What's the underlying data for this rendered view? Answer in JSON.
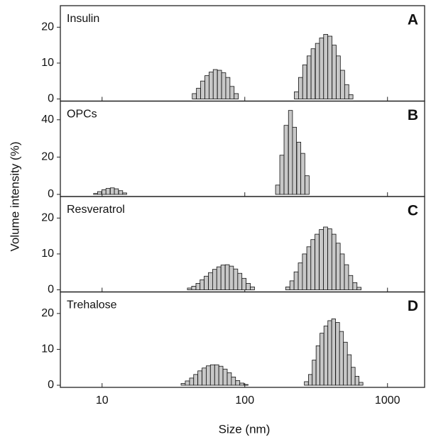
{
  "y_label": "Volume intensity (%)",
  "x_label": "Size (nm)",
  "chart_data": [
    {
      "type": "bar",
      "title": "Insulin",
      "panel_label": "A",
      "log_x": true,
      "color": "#c8c8c8",
      "x": [
        44.3,
        47.4,
        50.7,
        54.3,
        58.1,
        62.1,
        66.5,
        71.1,
        76.1,
        81.4,
        87.1,
        230,
        246,
        263,
        282,
        301,
        323,
        345,
        369,
        395,
        423,
        452,
        484,
        518,
        554
      ],
      "values": [
        1.5,
        3,
        5,
        6.5,
        7.5,
        8.2,
        8,
        7.3,
        6,
        3.5,
        1.5,
        2,
        6,
        9.5,
        12,
        14,
        15.5,
        17,
        18,
        17.5,
        15,
        12,
        8,
        4,
        1.2
      ],
      "xlim": [
        5.1,
        1820
      ],
      "xticks": [
        10,
        100,
        1000
      ],
      "ylim": [
        0,
        26
      ],
      "yticks": [
        0,
        10,
        20
      ]
    },
    {
      "type": "bar",
      "title": "OPCs",
      "panel_label": "B",
      "log_x": true,
      "color": "#c8c8c8",
      "x": [
        9.0,
        9.6,
        10.3,
        11.0,
        11.8,
        12.6,
        13.5,
        14.4,
        170,
        182,
        195,
        209,
        223,
        239,
        255,
        273
      ],
      "values": [
        0.5,
        1.5,
        2.5,
        3.2,
        3.5,
        3,
        2,
        0.8,
        5,
        21,
        37,
        45,
        36,
        28,
        22,
        10
      ],
      "xlim": [
        5.1,
        1820
      ],
      "xticks": [
        10,
        100,
        1000
      ],
      "ylim": [
        0,
        50
      ],
      "yticks": [
        0,
        20,
        40
      ]
    },
    {
      "type": "bar",
      "title": "Resveratrol",
      "panel_label": "C",
      "log_x": true,
      "color": "#c8c8c8",
      "x": [
        41,
        43.9,
        47,
        50.2,
        53.7,
        57.5,
        61.5,
        65.8,
        70.4,
        75.4,
        80.6,
        86.3,
        92.3,
        98.8,
        105.7,
        113.1,
        200,
        214,
        229,
        245,
        262,
        281,
        300,
        321,
        344,
        368,
        394,
        421,
        451,
        482,
        516,
        552,
        591,
        632
      ],
      "values": [
        0.5,
        1,
        1.8,
        2.8,
        3.8,
        4.8,
        5.7,
        6.4,
        6.9,
        7,
        6.6,
        5.8,
        4.6,
        3.2,
        1.8,
        0.8,
        0.8,
        2.5,
        5,
        7.5,
        10,
        12,
        14,
        15.5,
        16.8,
        17.5,
        17,
        15.5,
        13,
        10,
        7,
        4,
        2,
        0.7
      ],
      "xlim": [
        5.1,
        1820
      ],
      "xticks": [
        10,
        100,
        1000
      ],
      "ylim": [
        0,
        26
      ],
      "yticks": [
        0,
        10,
        20
      ]
    },
    {
      "type": "bar",
      "title": "Trehalose",
      "panel_label": "D",
      "log_x": true,
      "color": "#c8c8c8",
      "x": [
        37,
        39.6,
        42.4,
        45.3,
        48.5,
        51.9,
        55.5,
        59.4,
        63.6,
        68,
        72.8,
        77.9,
        83.3,
        89.2,
        95.4,
        102,
        270,
        288,
        306,
        326,
        347,
        370,
        394,
        419,
        447,
        476,
        507,
        540,
        575,
        612,
        652
      ],
      "values": [
        0.5,
        1.2,
        2,
        3,
        4,
        4.8,
        5.4,
        5.7,
        5.7,
        5.3,
        4.5,
        3.5,
        2.3,
        1.3,
        0.6,
        0.2,
        1,
        3,
        7,
        11,
        14.5,
        16.5,
        18,
        18.5,
        17.5,
        15,
        12,
        8.5,
        5,
        2.5,
        0.8
      ],
      "xlim": [
        5.1,
        1820
      ],
      "xticks": [
        10,
        100,
        1000
      ],
      "ylim": [
        0,
        26
      ],
      "yticks": [
        0,
        10,
        20
      ]
    }
  ]
}
